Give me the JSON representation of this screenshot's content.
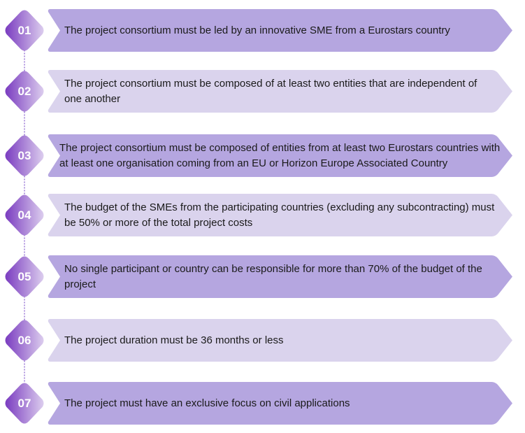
{
  "colors": {
    "dark_banner": "#b5a6e0",
    "light_banner": "#dad3ed",
    "diamond_start": "#7a3cc0",
    "diamond_end": "#dccdee",
    "connector": "#9b7ad6"
  },
  "steps": [
    {
      "number": "01",
      "text": "The project consortium must be led by an innovative SME from a Eurostars country",
      "shade": "dark"
    },
    {
      "number": "02",
      "text": "The project consortium must be composed of at least two entities that are independent of one another",
      "shade": "light"
    },
    {
      "number": "03",
      "text": "The project consortium must be composed of entities from at least two Eurostars countries with at least one organisation coming from an EU or Horizon Europe Associated Country",
      "shade": "dark"
    },
    {
      "number": "04",
      "text": "The budget of the SMEs from the participating countries (excluding any subcontracting) must be 50% or more of the total project costs",
      "shade": "light"
    },
    {
      "number": "05",
      "text": "No single participant or country can be responsible for more than 70% of the budget of the project",
      "shade": "dark"
    },
    {
      "number": "06",
      "text": "The project duration must be 36 months or less",
      "shade": "light"
    },
    {
      "number": "07",
      "text": "The project must have an exclusive focus on civil applications",
      "shade": "dark"
    }
  ]
}
